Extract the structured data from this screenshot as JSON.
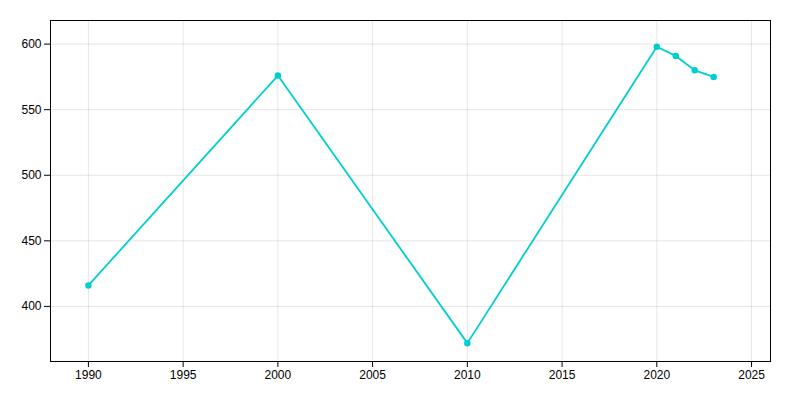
{
  "chart_data": {
    "type": "line",
    "x": [
      1990,
      2000,
      2010,
      2020,
      2021,
      2022,
      2023
    ],
    "values": [
      416,
      576,
      372,
      598,
      591,
      580,
      575
    ],
    "color": "#00CFCF",
    "marker": "circle",
    "xlim": [
      1988,
      2026
    ],
    "ylim": [
      358,
      618
    ],
    "xticks": [
      1990,
      1995,
      2000,
      2005,
      2010,
      2015,
      2020,
      2025
    ],
    "yticks": [
      400,
      450,
      500,
      550,
      600
    ],
    "grid": true
  }
}
